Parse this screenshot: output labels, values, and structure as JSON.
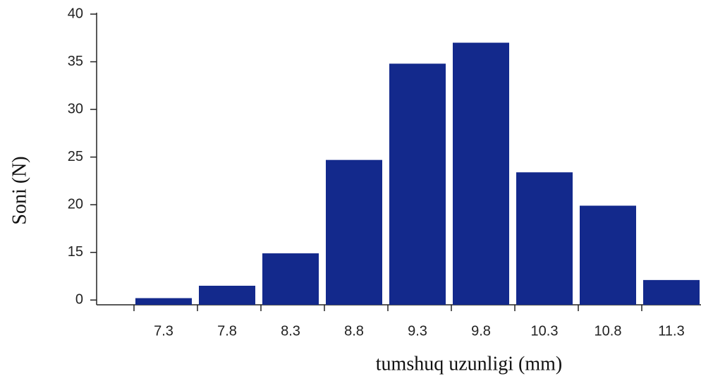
{
  "chart_data": {
    "type": "bar",
    "xlabel": "tumshuq uzunligi (mm)",
    "ylabel": "Soni (N)",
    "categories": [
      "7.3",
      "7.8",
      "8.3",
      "8.8",
      "9.3",
      "9.8",
      "10.3",
      "10.8",
      "11.3"
    ],
    "values": [
      10.2,
      11.5,
      14.9,
      24.7,
      34.8,
      37.0,
      23.4,
      19.9,
      12.1
    ],
    "color": "#13298c",
    "ylim": [
      9.5,
      40
    ],
    "yticks": [
      {
        "value": 10,
        "label": "0"
      },
      15,
      20,
      25,
      30,
      35,
      40
    ],
    "grid": false
  }
}
